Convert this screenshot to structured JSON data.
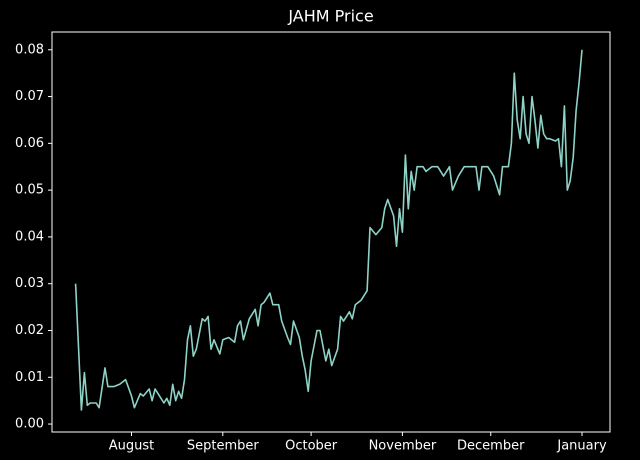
{
  "chart_data": {
    "type": "line",
    "title": "JAHM Price",
    "color": "#8dd3c7",
    "x": [
      12,
      14,
      15,
      16,
      17,
      19,
      20,
      22,
      23,
      25,
      27,
      29,
      31,
      32,
      34,
      35,
      37,
      38,
      39,
      40,
      42,
      43,
      44,
      45,
      46,
      47,
      48,
      49,
      50,
      51,
      52,
      53,
      55,
      56,
      57,
      58,
      59,
      61,
      62,
      64,
      66,
      67,
      68,
      69,
      71,
      73,
      74,
      75,
      76,
      78,
      79,
      81,
      82,
      84,
      85,
      86,
      88,
      89,
      90,
      91,
      92,
      94,
      95,
      97,
      98,
      99,
      101,
      102,
      103,
      105,
      106,
      107,
      109,
      111,
      112,
      114,
      116,
      117,
      118,
      120,
      121,
      122,
      123,
      124,
      125,
      126,
      127,
      128,
      130,
      131,
      133,
      135,
      137,
      139,
      140,
      142,
      144,
      146,
      148,
      149,
      150,
      152,
      154,
      156,
      157,
      159,
      160,
      161,
      162,
      163,
      164,
      165,
      166,
      167,
      168,
      169,
      170,
      171,
      172,
      173,
      175,
      176,
      177,
      178,
      179,
      180,
      181,
      182,
      183,
      184
    ],
    "values": [
      0.03,
      0.003,
      0.011,
      0.004,
      0.0045,
      0.0045,
      0.0035,
      0.012,
      0.008,
      0.008,
      0.0085,
      0.0095,
      0.006,
      0.0035,
      0.0065,
      0.006,
      0.0075,
      0.005,
      0.0075,
      0.0065,
      0.0045,
      0.0055,
      0.004,
      0.0085,
      0.005,
      0.007,
      0.0055,
      0.0095,
      0.018,
      0.021,
      0.0145,
      0.016,
      0.0225,
      0.022,
      0.023,
      0.016,
      0.018,
      0.015,
      0.018,
      0.0185,
      0.0175,
      0.021,
      0.022,
      0.018,
      0.0225,
      0.0245,
      0.021,
      0.0255,
      0.026,
      0.028,
      0.0255,
      0.0255,
      0.022,
      0.0185,
      0.017,
      0.022,
      0.0185,
      0.0145,
      0.0115,
      0.007,
      0.0135,
      0.02,
      0.02,
      0.0135,
      0.016,
      0.0125,
      0.016,
      0.023,
      0.022,
      0.024,
      0.0225,
      0.0255,
      0.0265,
      0.0285,
      0.042,
      0.0405,
      0.042,
      0.046,
      0.048,
      0.0445,
      0.038,
      0.046,
      0.041,
      0.0575,
      0.046,
      0.054,
      0.05,
      0.055,
      0.055,
      0.054,
      0.055,
      0.055,
      0.053,
      0.055,
      0.05,
      0.053,
      0.055,
      0.055,
      0.055,
      0.05,
      0.055,
      0.055,
      0.053,
      0.049,
      0.055,
      0.055,
      0.06,
      0.075,
      0.065,
      0.061,
      0.07,
      0.062,
      0.06,
      0.07,
      0.065,
      0.059,
      0.066,
      0.062,
      0.061,
      0.061,
      0.0605,
      0.061,
      0.055,
      0.068,
      0.05,
      0.052,
      0.057,
      0.067,
      0.073,
      0.08
    ],
    "xlim": [
      4,
      193.5
    ],
    "xticks": [
      {
        "value": 31,
        "label": "August"
      },
      {
        "value": 62,
        "label": "September"
      },
      {
        "value": 92,
        "label": "October"
      },
      {
        "value": 123,
        "label": "November"
      },
      {
        "value": 153,
        "label": "December"
      },
      {
        "value": 184,
        "label": "January"
      }
    ],
    "ylim": [
      -0.0017,
      0.0838
    ],
    "yticks": [
      {
        "value": 0,
        "label": "0.00"
      },
      0.01,
      0.02,
      0.03,
      0.04,
      0.05,
      0.06,
      0.07,
      0.08
    ]
  }
}
